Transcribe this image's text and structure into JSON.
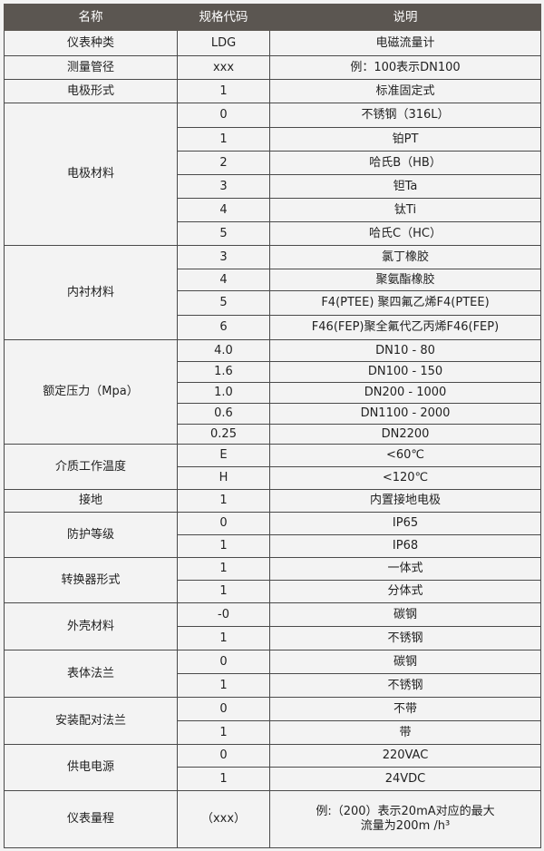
{
  "header": {
    "name": "名称",
    "code": "规格代码",
    "desc": "说明"
  },
  "groups": [
    {
      "name": "仪表种类",
      "items": [
        {
          "code": "LDG",
          "desc": "电磁流量计"
        }
      ]
    },
    {
      "name": "测量管径",
      "items": [
        {
          "code": "xxx",
          "desc": "例：100表示DN100"
        }
      ]
    },
    {
      "name": "电极形式",
      "items": [
        {
          "code": "1",
          "desc": "标准固定式"
        }
      ]
    },
    {
      "name": "电极材料",
      "items": [
        {
          "code": "0",
          "desc": "不锈钢（316L）"
        },
        {
          "code": "1",
          "desc": "铂PT"
        },
        {
          "code": "2",
          "desc": "哈氏B（HB）"
        },
        {
          "code": "3",
          "desc": "钽Ta"
        },
        {
          "code": "4",
          "desc": "钛Ti"
        },
        {
          "code": "5",
          "desc": "哈氏C（HC）"
        }
      ]
    },
    {
      "name": "内衬材料",
      "items": [
        {
          "code": "3",
          "desc": "氯丁橡胶"
        },
        {
          "code": "4",
          "desc": "聚氨酯橡胶"
        },
        {
          "code": "5",
          "desc": "F4(PTEE) 聚四氟乙烯F4(PTEE)"
        },
        {
          "code": "6",
          "desc": "F46(FEP)聚全氟代乙丙烯F46(FEP)"
        }
      ]
    },
    {
      "name": "额定压力（Mpa）",
      "items": [
        {
          "code": "4.0",
          "desc": "DN10 - 80"
        },
        {
          "code": "1.6",
          "desc": "DN100 - 150"
        },
        {
          "code": "1.0",
          "desc": "DN200 - 1000"
        },
        {
          "code": "0.6",
          "desc": "DN1100 - 2000"
        },
        {
          "code": "0.25",
          "desc": "DN2200"
        }
      ]
    },
    {
      "name": "介质工作温度",
      "items": [
        {
          "code": "E",
          "desc": "<60℃"
        },
        {
          "code": "H",
          "desc": "<120℃"
        }
      ]
    },
    {
      "name": "接地",
      "items": [
        {
          "code": "1",
          "desc": "内置接地电极"
        }
      ]
    },
    {
      "name": "防护等级",
      "items": [
        {
          "code": "0",
          "desc": "IP65"
        },
        {
          "code": "1",
          "desc": "IP68"
        }
      ]
    },
    {
      "name": "转换器形式",
      "items": [
        {
          "code": "1",
          "desc": "一体式"
        },
        {
          "code": "1",
          "desc": "分体式"
        }
      ]
    },
    {
      "name": "外壳材料",
      "items": [
        {
          "code": "-0",
          "desc": "碳钢"
        },
        {
          "code": "1",
          "desc": "不锈钢"
        }
      ]
    },
    {
      "name": "表体法兰",
      "items": [
        {
          "code": "0",
          "desc": "碳钢"
        },
        {
          "code": "1",
          "desc": "不锈钢"
        }
      ]
    },
    {
      "name": "安装配对法兰",
      "items": [
        {
          "code": "0",
          "desc": "不带"
        },
        {
          "code": "1",
          "desc": "带"
        }
      ]
    },
    {
      "name": "供电电源",
      "items": [
        {
          "code": "0",
          "desc": "220VAC"
        },
        {
          "code": "1",
          "desc": "24VDC"
        }
      ]
    },
    {
      "name": "仪表量程",
      "items": [
        {
          "code": "（xxx）",
          "desc": "例:（200）表示20mA对应的最大\n流量为200m /h³"
        }
      ]
    }
  ]
}
